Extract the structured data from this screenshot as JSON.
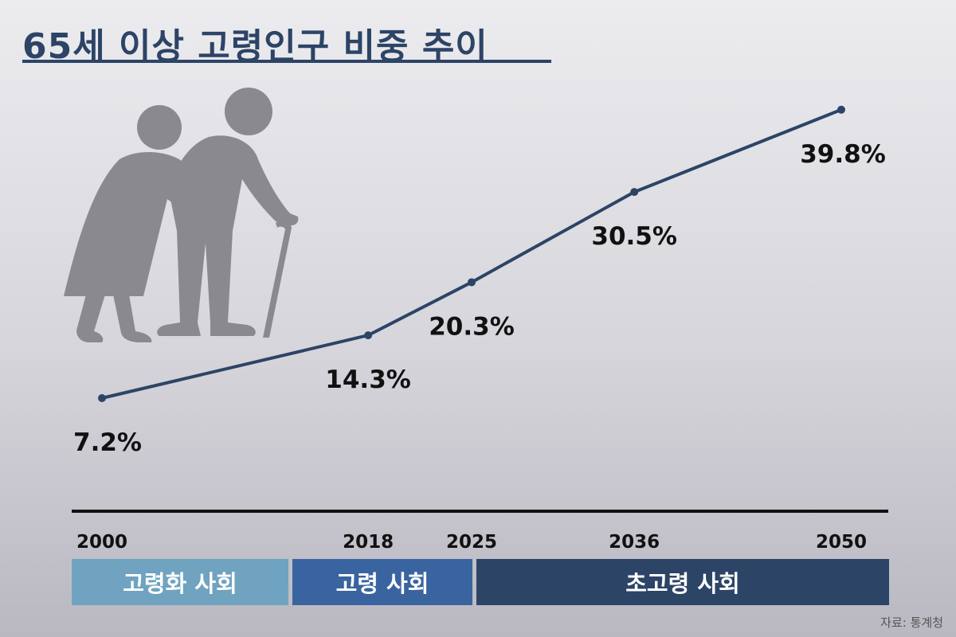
{
  "title": "65세 이상 고령인구 비중 추이",
  "chart_data": {
    "type": "line",
    "title": "65세 이상 고령인구 비중 추이",
    "x": [
      "2000",
      "2018",
      "2025",
      "2036",
      "2050"
    ],
    "values": [
      7.2,
      14.3,
      20.3,
      30.5,
      39.8
    ],
    "data_labels": [
      "7.2%",
      "14.3%",
      "20.3%",
      "30.5%",
      "39.8%"
    ],
    "xlabel": "",
    "ylabel": "",
    "ylim": [
      0,
      45
    ],
    "grid": false,
    "line_color": "#2c4466"
  },
  "eras": [
    {
      "label": "고령화 사회",
      "color": "#6fa3c0"
    },
    {
      "label": "고령 사회",
      "color": "#3a64a0"
    },
    {
      "label": "초고령 사회",
      "color": "#2c4466"
    }
  ],
  "illustration": {
    "icon": "elderly-couple-icon",
    "color": "#8a8a8e"
  },
  "source": "자료: 통계청"
}
